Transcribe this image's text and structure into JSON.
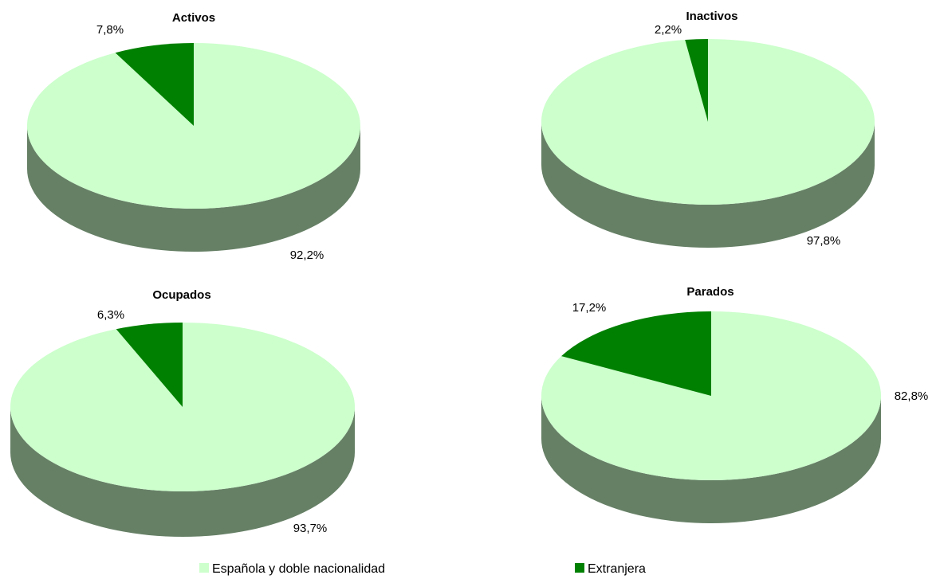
{
  "chart_data": [
    {
      "type": "pie",
      "title": "Activos",
      "categories": [
        "Española y doble nacionalidad",
        "Extranjera"
      ],
      "values": [
        92.2,
        7.8
      ],
      "labels": [
        "92,2%",
        "7,8%"
      ]
    },
    {
      "type": "pie",
      "title": "Inactivos",
      "categories": [
        "Española y doble nacionalidad",
        "Extranjera"
      ],
      "values": [
        97.8,
        2.2
      ],
      "labels": [
        "97,8%",
        "2,2%"
      ]
    },
    {
      "type": "pie",
      "title": "Ocupados",
      "categories": [
        "Española y doble nacionalidad",
        "Extranjera"
      ],
      "values": [
        93.7,
        6.3
      ],
      "labels": [
        "93,7%",
        "6,3%"
      ]
    },
    {
      "type": "pie",
      "title": "Parados",
      "categories": [
        "Española y doble nacionalidad",
        "Extranjera"
      ],
      "values": [
        82.8,
        17.2
      ],
      "labels": [
        "82,8%",
        "17,2%"
      ]
    }
  ],
  "legend": {
    "placement": "bottom",
    "items": [
      {
        "label": "Española y doble nacionalidad",
        "color": "#ccffcc"
      },
      {
        "label": "Extranjera",
        "color": "#008000"
      }
    ]
  },
  "colors": {
    "spanish_top": "#ccffcc",
    "foreign_top": "#008000",
    "side": "#668066",
    "side_foreign": "#004d00"
  }
}
